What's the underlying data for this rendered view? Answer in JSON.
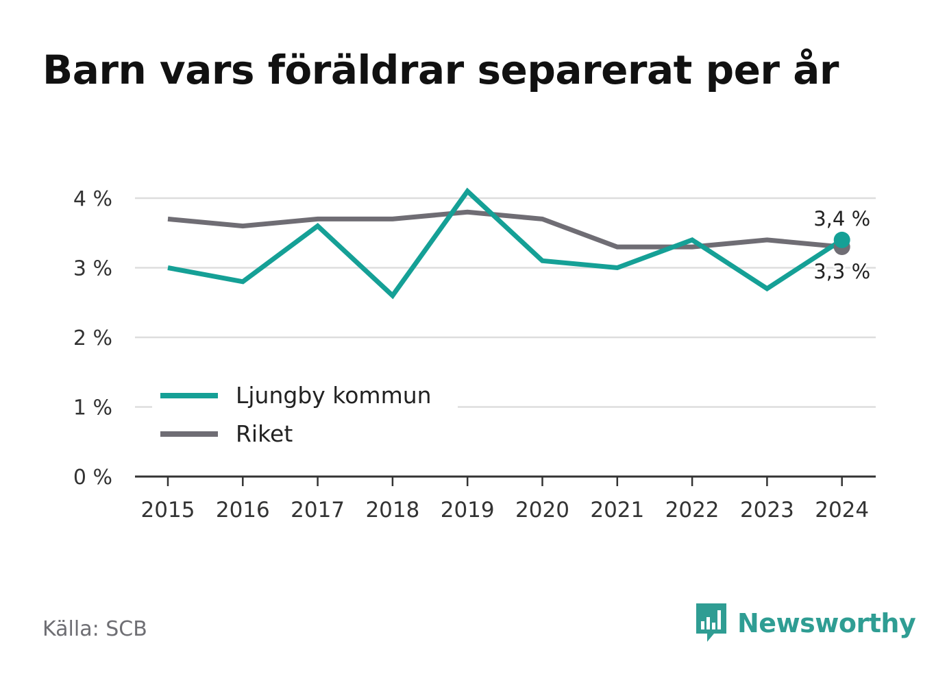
{
  "title": "Barn vars föräldrar separerat per år",
  "source": "Källa: SCB",
  "brand": {
    "name": "Newsworthy",
    "icon": "newsworthy-logo-icon"
  },
  "colors": {
    "primary": "#15a096",
    "secondary": "#6f6d74",
    "grid": "#dddddd",
    "axis": "#333333"
  },
  "chart_data": {
    "type": "line",
    "title": "Barn vars föräldrar separerat per år",
    "xlabel": "",
    "ylabel": "",
    "x": [
      "2015",
      "2016",
      "2017",
      "2018",
      "2019",
      "2020",
      "2021",
      "2022",
      "2023",
      "2024"
    ],
    "ylim": [
      0,
      4.3
    ],
    "yticks": [
      0,
      1,
      2,
      3,
      4
    ],
    "ytick_labels": [
      "0 %",
      "1 %",
      "2 %",
      "3 %",
      "4 %"
    ],
    "grid": true,
    "legend_position": "bottom-left",
    "series": [
      {
        "name": "Ljungby kommun",
        "color": "#15a096",
        "values": [
          3.0,
          2.8,
          3.6,
          2.6,
          4.1,
          3.1,
          3.0,
          3.4,
          2.7,
          3.4
        ]
      },
      {
        "name": "Riket",
        "color": "#6f6d74",
        "values": [
          3.7,
          3.6,
          3.7,
          3.7,
          3.8,
          3.7,
          3.3,
          3.3,
          3.4,
          3.3
        ]
      }
    ],
    "annotations": [
      {
        "series": "Ljungby kommun",
        "x": "2024",
        "text": "3,4 %"
      },
      {
        "series": "Riket",
        "x": "2024",
        "text": "3,3 %"
      }
    ]
  }
}
